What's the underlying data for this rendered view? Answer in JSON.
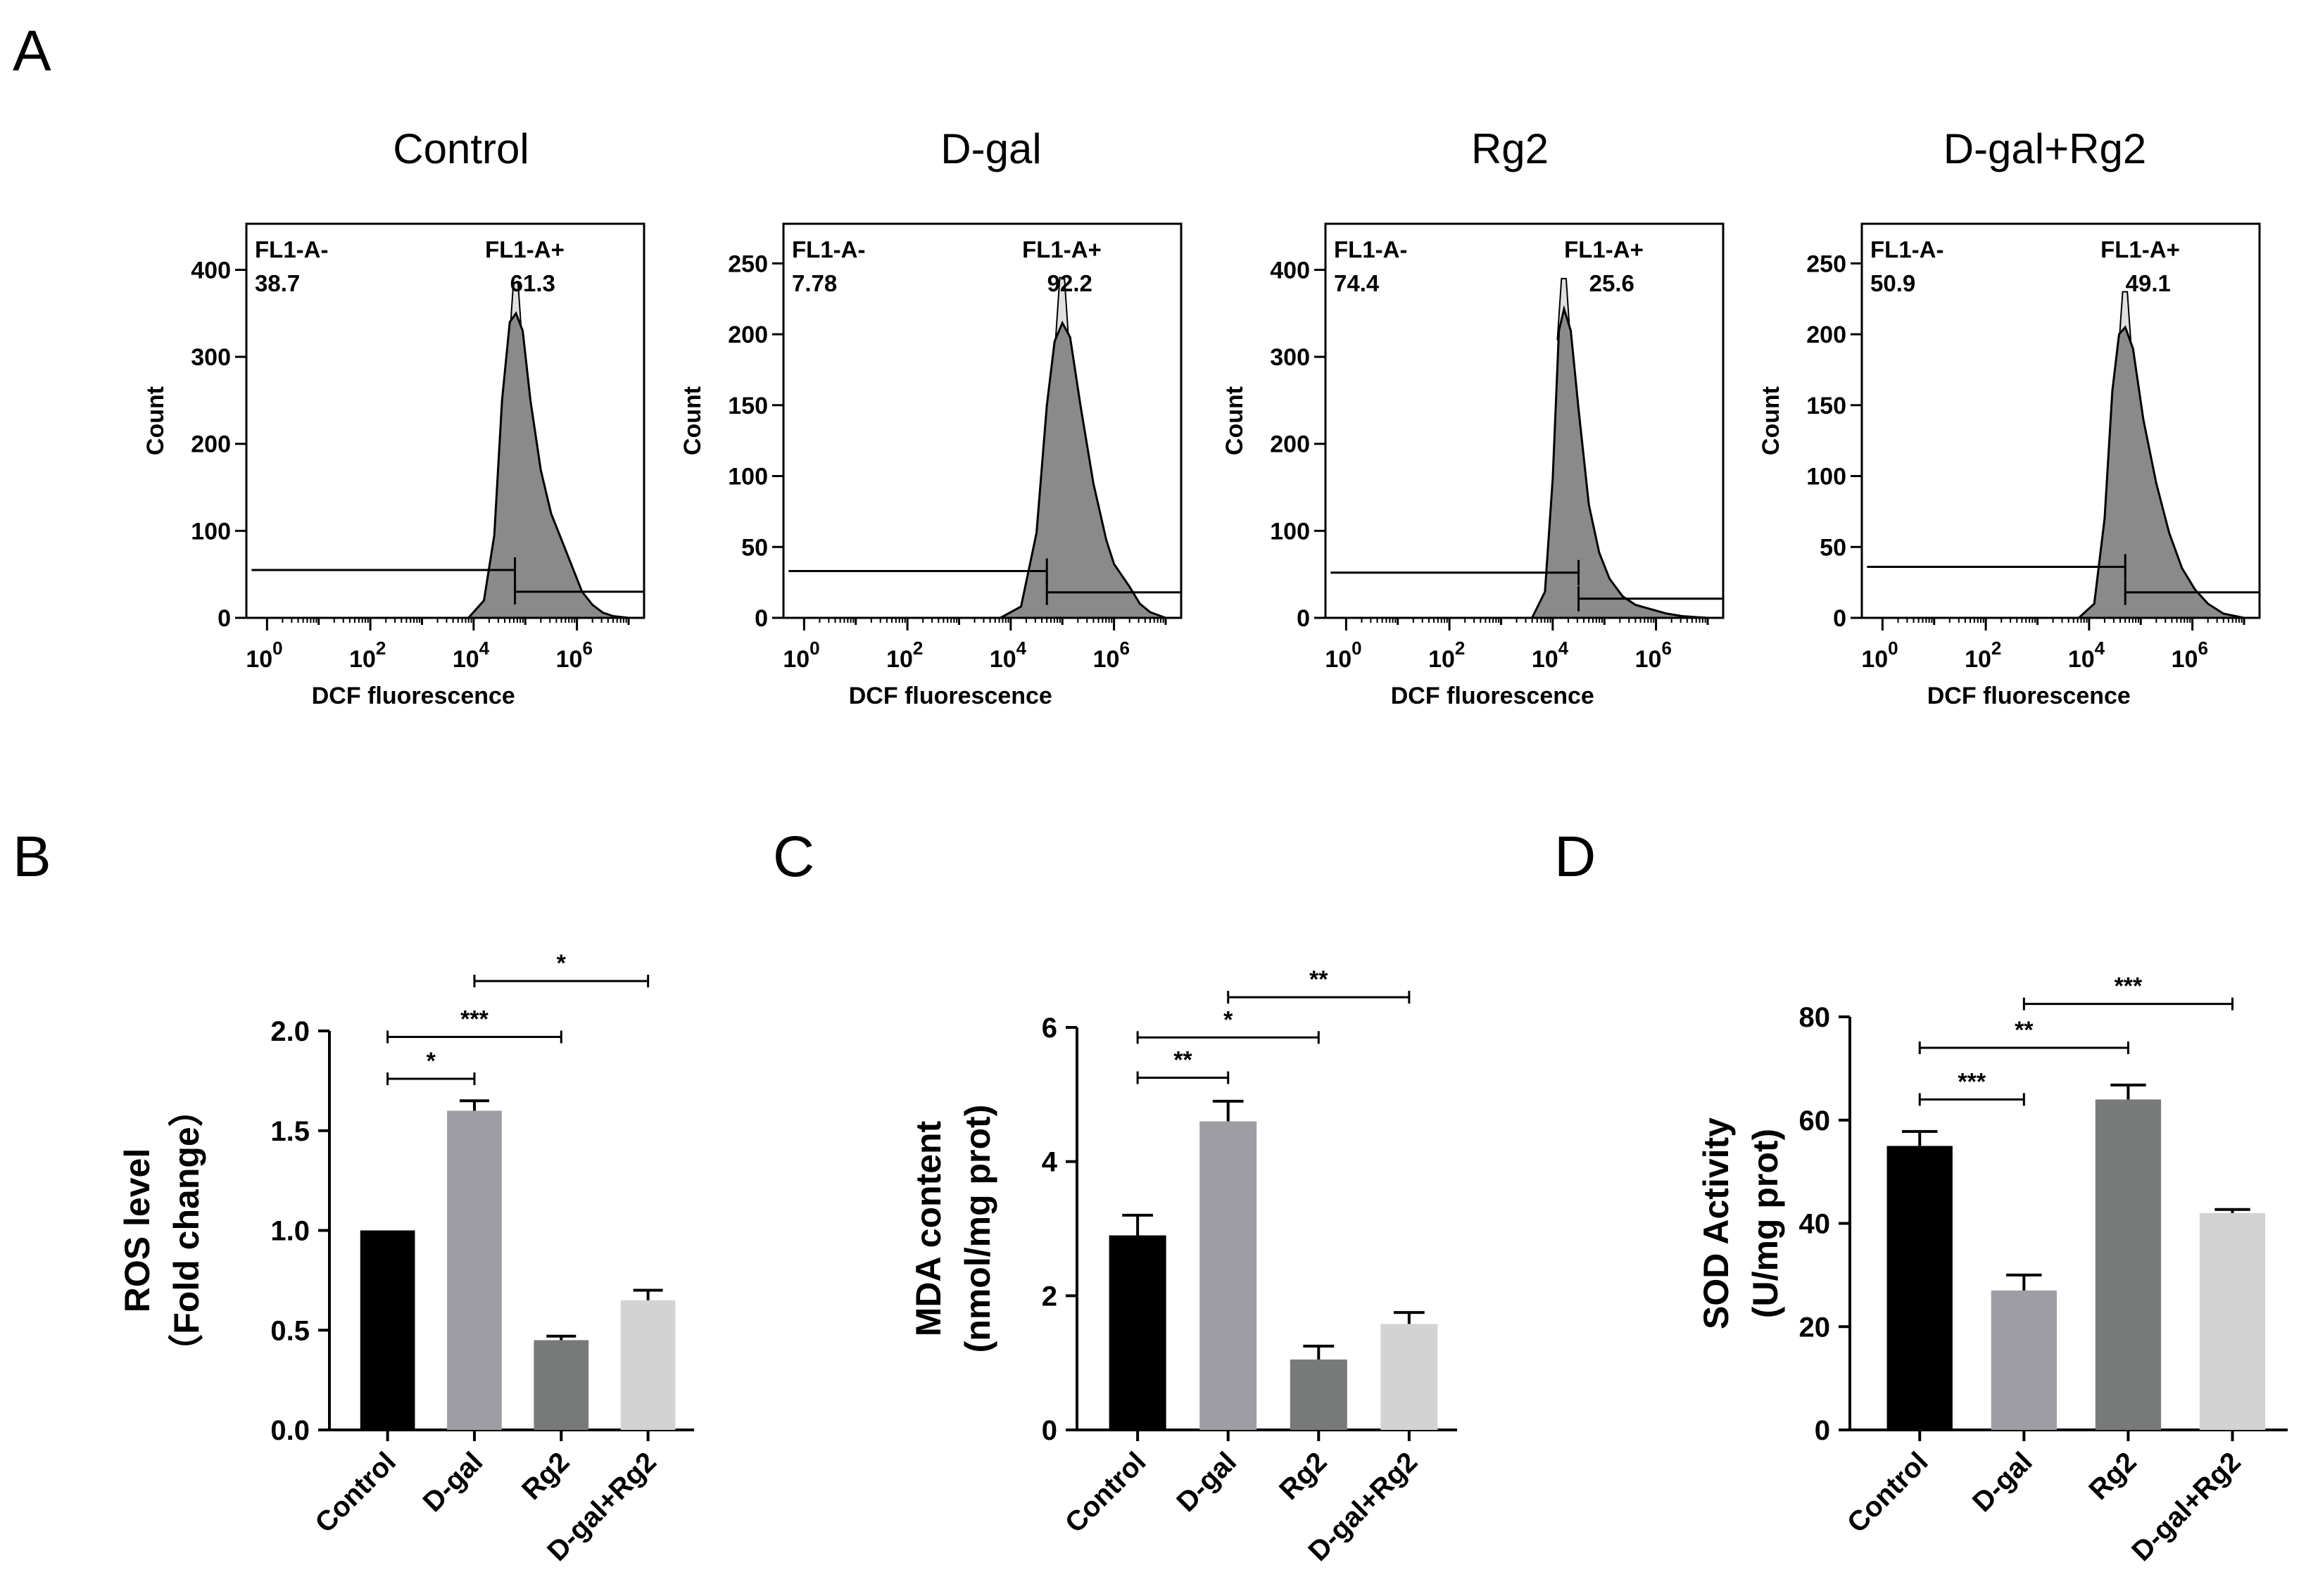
{
  "panel_letters": [
    "A",
    "B",
    "C",
    "D"
  ],
  "chart_data": [
    {
      "type": "area",
      "panel": "A",
      "title": "Control",
      "xlabel": "DCF fluorescence",
      "ylabel": "Count",
      "xscale": "log",
      "xticks": [
        0,
        2,
        4,
        6
      ],
      "xtick_base": "10",
      "yticks": [
        0,
        100,
        200,
        300,
        400
      ],
      "ylim": [
        0,
        440
      ],
      "gates": [
        {
          "name": "FL1-A-",
          "value": "38.7",
          "range_log10": [
            -0.3,
            4.8
          ],
          "y": 55
        },
        {
          "name": "FL1-A+",
          "value": "61.3",
          "range_log10": [
            4.8,
            7.3
          ],
          "y": 30
        }
      ],
      "histogram": [
        [
          3.9,
          0
        ],
        [
          4.2,
          20
        ],
        [
          4.4,
          95
        ],
        [
          4.55,
          250
        ],
        [
          4.7,
          340
        ],
        [
          4.82,
          350
        ],
        [
          4.95,
          330
        ],
        [
          5.1,
          250
        ],
        [
          5.3,
          170
        ],
        [
          5.5,
          120
        ],
        [
          5.7,
          90
        ],
        [
          5.9,
          60
        ],
        [
          6.1,
          30
        ],
        [
          6.3,
          15
        ],
        [
          6.5,
          6
        ],
        [
          6.7,
          2
        ],
        [
          7.0,
          0
        ]
      ],
      "peak": [
        4.82,
        385
      ]
    },
    {
      "type": "area",
      "panel": "A",
      "title": "D-gal",
      "xlabel": "DCF fluorescence",
      "ylabel": "Count",
      "xscale": "log",
      "xticks": [
        0,
        2,
        4,
        6
      ],
      "xtick_base": "10",
      "yticks": [
        0,
        50,
        100,
        150,
        200,
        250
      ],
      "ylim": [
        0,
        270
      ],
      "gates": [
        {
          "name": "FL1-A-",
          "value": "7.78",
          "range_log10": [
            -0.3,
            4.7
          ],
          "y": 33
        },
        {
          "name": "FL1-A+",
          "value": "92.2",
          "range_log10": [
            4.7,
            7.3
          ],
          "y": 18
        }
      ],
      "histogram": [
        [
          3.8,
          0
        ],
        [
          4.2,
          8
        ],
        [
          4.5,
          60
        ],
        [
          4.7,
          150
        ],
        [
          4.85,
          195
        ],
        [
          5.0,
          208
        ],
        [
          5.15,
          198
        ],
        [
          5.35,
          150
        ],
        [
          5.6,
          95
        ],
        [
          5.85,
          55
        ],
        [
          6.0,
          38
        ],
        [
          6.15,
          30
        ],
        [
          6.3,
          22
        ],
        [
          6.5,
          10
        ],
        [
          6.7,
          4
        ],
        [
          7.0,
          0
        ]
      ],
      "peak": [
        5.0,
        240
      ]
    },
    {
      "type": "area",
      "panel": "A",
      "title": "Rg2",
      "xlabel": "DCF fluorescence",
      "ylabel": "Count",
      "xscale": "log",
      "xticks": [
        0,
        2,
        4,
        6
      ],
      "xtick_base": "10",
      "yticks": [
        0,
        100,
        200,
        300,
        400
      ],
      "ylim": [
        0,
        440
      ],
      "gates": [
        {
          "name": "FL1-A-",
          "value": "74.4",
          "range_log10": [
            -0.3,
            4.5
          ],
          "y": 52
        },
        {
          "name": "FL1-A+",
          "value": "25.6",
          "range_log10": [
            4.5,
            7.3
          ],
          "y": 22
        }
      ],
      "histogram": [
        [
          3.6,
          0
        ],
        [
          3.85,
          30
        ],
        [
          4.0,
          160
        ],
        [
          4.12,
          330
        ],
        [
          4.22,
          355
        ],
        [
          4.35,
          330
        ],
        [
          4.5,
          240
        ],
        [
          4.7,
          130
        ],
        [
          4.9,
          75
        ],
        [
          5.1,
          45
        ],
        [
          5.35,
          25
        ],
        [
          5.6,
          15
        ],
        [
          5.9,
          10
        ],
        [
          6.2,
          5
        ],
        [
          6.5,
          2
        ],
        [
          7.0,
          0
        ]
      ],
      "peak": [
        4.22,
        390
      ]
    },
    {
      "type": "area",
      "panel": "A",
      "title": "D-gal+Rg2",
      "xlabel": "DCF fluorescence",
      "ylabel": "Count",
      "xscale": "log",
      "xticks": [
        0,
        2,
        4,
        6
      ],
      "xtick_base": "10",
      "yticks": [
        0,
        50,
        100,
        150,
        200,
        250
      ],
      "ylim": [
        0,
        270
      ],
      "gates": [
        {
          "name": "FL1-A-",
          "value": "50.9",
          "range_log10": [
            -0.3,
            4.7
          ],
          "y": 36
        },
        {
          "name": "FL1-A+",
          "value": "49.1",
          "range_log10": [
            4.7,
            7.3
          ],
          "y": 18
        }
      ],
      "histogram": [
        [
          3.8,
          0
        ],
        [
          4.1,
          10
        ],
        [
          4.3,
          70
        ],
        [
          4.45,
          160
        ],
        [
          4.58,
          200
        ],
        [
          4.7,
          205
        ],
        [
          4.85,
          190
        ],
        [
          5.05,
          140
        ],
        [
          5.3,
          95
        ],
        [
          5.55,
          60
        ],
        [
          5.8,
          35
        ],
        [
          6.05,
          20
        ],
        [
          6.3,
          10
        ],
        [
          6.6,
          3
        ],
        [
          7.0,
          0
        ]
      ],
      "peak": [
        4.7,
        230
      ]
    },
    {
      "type": "bar",
      "panel": "B",
      "categories": [
        "Control",
        "D-gal",
        "Rg2",
        "D-gal+Rg2"
      ],
      "values": [
        1.0,
        1.6,
        0.45,
        0.65
      ],
      "errors": [
        0.0,
        0.05,
        0.02,
        0.05
      ],
      "colors": [
        "#000000",
        "#9d9da3",
        "#787a7a",
        "#d3d3d3"
      ],
      "ylabel_lines": [
        "ROS level",
        "（Fold change）"
      ],
      "yticks": [
        "0.0",
        "0.5",
        "1.0",
        "1.5",
        "2.0"
      ],
      "ylim": [
        0,
        2.0
      ],
      "significance": [
        {
          "from": 0,
          "to": 1,
          "label": "*",
          "y": 1.76
        },
        {
          "from": 0,
          "to": 2,
          "label": "***",
          "y": 1.97
        },
        {
          "from": 1,
          "to": 3,
          "label": "*",
          "y": 2.25
        }
      ]
    },
    {
      "type": "bar",
      "panel": "C",
      "categories": [
        "Control",
        "D-gal",
        "Rg2",
        "D-gal+Rg2"
      ],
      "values": [
        2.9,
        4.6,
        1.05,
        1.58
      ],
      "errors": [
        0.3,
        0.3,
        0.2,
        0.17
      ],
      "colors": [
        "#000000",
        "#9d9da3",
        "#787a7a",
        "#d3d3d3"
      ],
      "ylabel_lines": [
        "MDA content",
        "(nmol/mg prot)"
      ],
      "yticks": [
        "0",
        "2",
        "4",
        "6"
      ],
      "ylim": [
        0,
        6
      ],
      "significance": [
        {
          "from": 0,
          "to": 1,
          "label": "**",
          "y": 5.25
        },
        {
          "from": 0,
          "to": 2,
          "label": "*",
          "y": 5.85
        },
        {
          "from": 1,
          "to": 3,
          "label": "**",
          "y": 6.45
        }
      ]
    },
    {
      "type": "bar",
      "panel": "D",
      "categories": [
        "Control",
        "D-gal",
        "Rg2",
        "D-gal+Rg2"
      ],
      "values": [
        55,
        27,
        64,
        42
      ],
      "errors": [
        2.8,
        3.0,
        2.8,
        0.7
      ],
      "colors": [
        "#000000",
        "#9d9da3",
        "#787a7a",
        "#d3d3d3"
      ],
      "ylabel_lines": [
        "SOD Activity",
        "(U/mg prot)"
      ],
      "yticks": [
        "0",
        "20",
        "40",
        "60",
        "80"
      ],
      "ylim": [
        0,
        80
      ],
      "significance": [
        {
          "from": 0,
          "to": 1,
          "label": "***",
          "y": 64
        },
        {
          "from": 0,
          "to": 2,
          "label": "**",
          "y": 74
        },
        {
          "from": 1,
          "to": 3,
          "label": "***",
          "y": 82.5
        }
      ]
    }
  ]
}
